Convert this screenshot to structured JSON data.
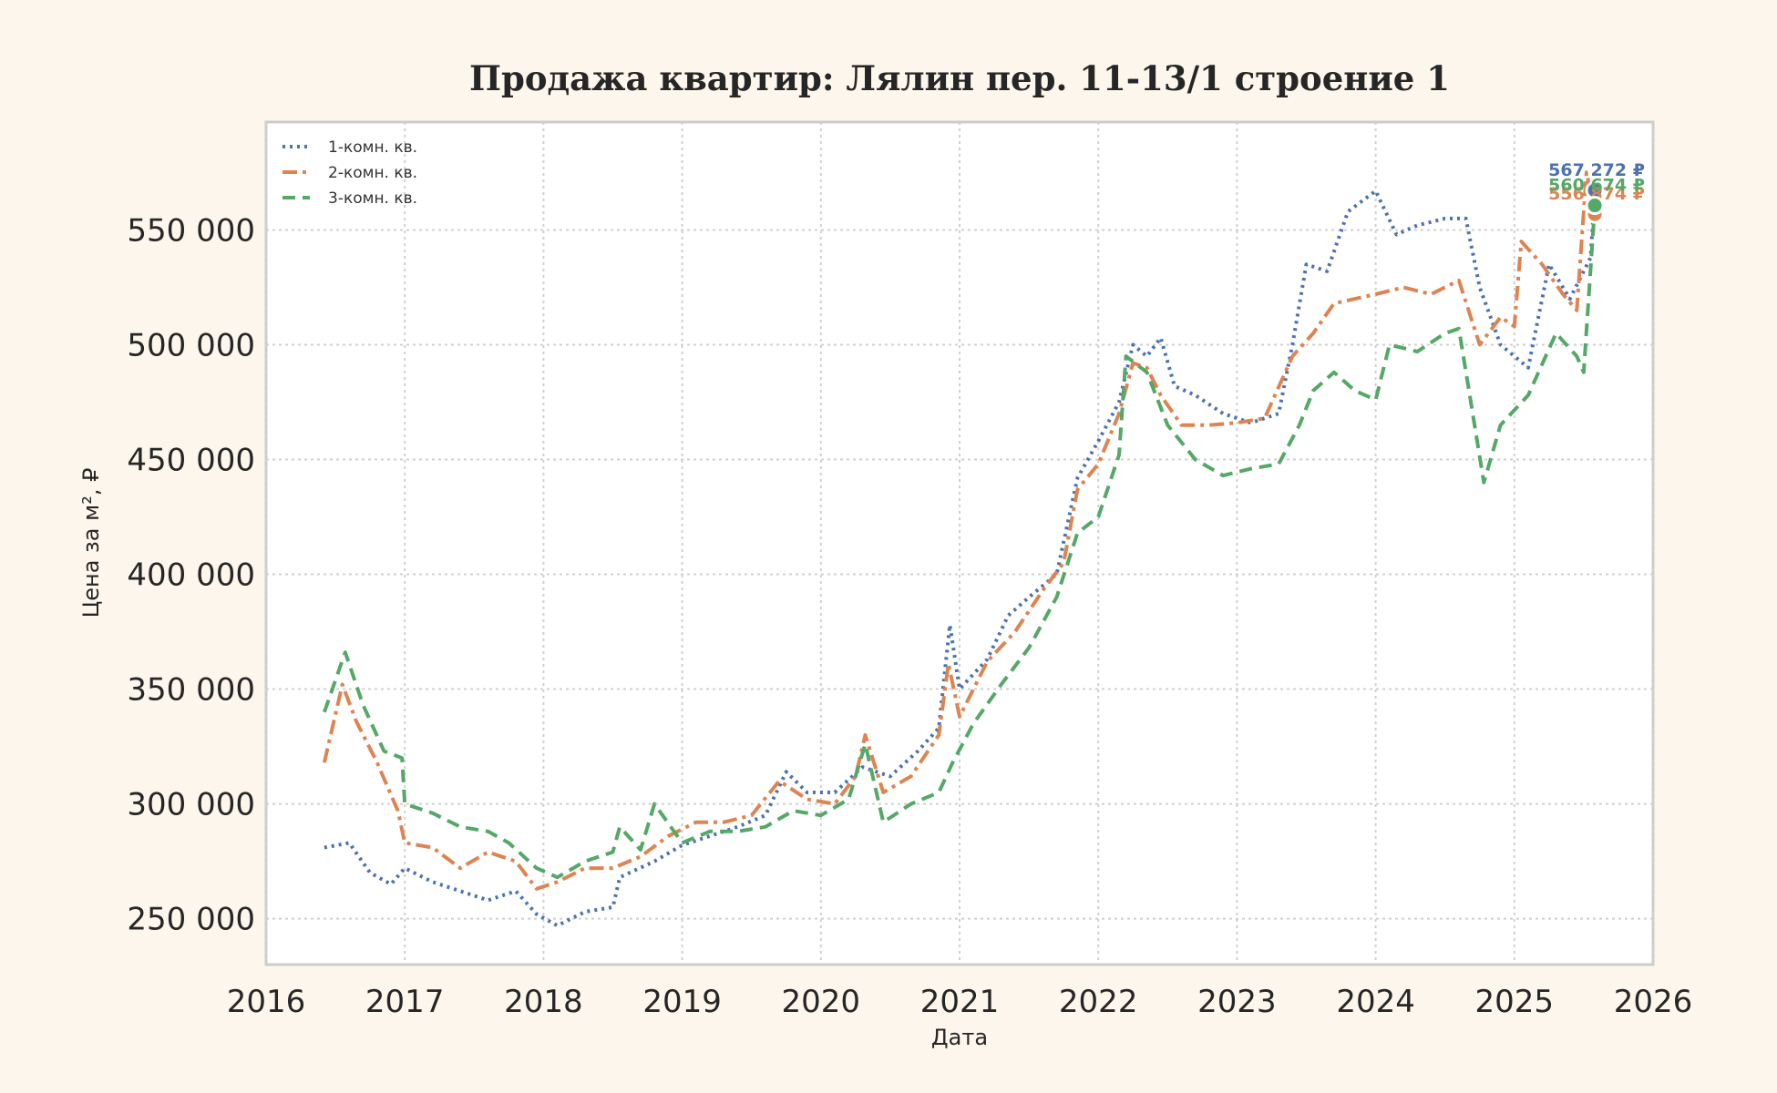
{
  "chart_data": {
    "type": "line",
    "title": "Продажа квартир: Лялин пер. 11-13/1 строение 1",
    "xlabel": "Дата",
    "ylabel": "Цена за м², ₽",
    "xlim": [
      2016,
      2026
    ],
    "ylim": [
      230000,
      597000
    ],
    "x_ticks": [
      "2016",
      "2017",
      "2018",
      "2019",
      "2020",
      "2021",
      "2022",
      "2023",
      "2024",
      "2025",
      "2026"
    ],
    "y_ticks": [
      {
        "value": 250000,
        "label": "250 000"
      },
      {
        "value": 300000,
        "label": "300 000"
      },
      {
        "value": 350000,
        "label": "350 000"
      },
      {
        "value": 400000,
        "label": "400 000"
      },
      {
        "value": 450000,
        "label": "450 000"
      },
      {
        "value": 500000,
        "label": "500 000"
      },
      {
        "value": 550000,
        "label": "550 000"
      }
    ],
    "grid": true,
    "legend_position": "top-left",
    "series": [
      {
        "name": "1-комн. кв.",
        "color": "#4c72b0",
        "dash": "dotted",
        "end_label": "567 272 ₽",
        "points": [
          [
            2016.42,
            281000
          ],
          [
            2016.6,
            283000
          ],
          [
            2016.75,
            270000
          ],
          [
            2016.9,
            265000
          ],
          [
            2017.0,
            272000
          ],
          [
            2017.2,
            266000
          ],
          [
            2017.4,
            262000
          ],
          [
            2017.6,
            258000
          ],
          [
            2017.8,
            262000
          ],
          [
            2017.95,
            252000
          ],
          [
            2018.1,
            247000
          ],
          [
            2018.3,
            253000
          ],
          [
            2018.5,
            255000
          ],
          [
            2018.55,
            268000
          ],
          [
            2018.8,
            275000
          ],
          [
            2019.0,
            282000
          ],
          [
            2019.2,
            286000
          ],
          [
            2019.4,
            290000
          ],
          [
            2019.6,
            295000
          ],
          [
            2019.75,
            314000
          ],
          [
            2019.9,
            305000
          ],
          [
            2020.1,
            305000
          ],
          [
            2020.3,
            316000
          ],
          [
            2020.5,
            312000
          ],
          [
            2020.7,
            323000
          ],
          [
            2020.85,
            333000
          ],
          [
            2020.93,
            378000
          ],
          [
            2021.0,
            350000
          ],
          [
            2021.2,
            363000
          ],
          [
            2021.35,
            382000
          ],
          [
            2021.5,
            390000
          ],
          [
            2021.7,
            400000
          ],
          [
            2021.85,
            442000
          ],
          [
            2022.0,
            458000
          ],
          [
            2022.15,
            475000
          ],
          [
            2022.25,
            500000
          ],
          [
            2022.35,
            495000
          ],
          [
            2022.45,
            503000
          ],
          [
            2022.55,
            482000
          ],
          [
            2022.7,
            478000
          ],
          [
            2022.9,
            470000
          ],
          [
            2023.1,
            466000
          ],
          [
            2023.3,
            470000
          ],
          [
            2023.4,
            500000
          ],
          [
            2023.5,
            535000
          ],
          [
            2023.65,
            532000
          ],
          [
            2023.8,
            558000
          ],
          [
            2024.0,
            567000
          ],
          [
            2024.15,
            548000
          ],
          [
            2024.3,
            552000
          ],
          [
            2024.5,
            555000
          ],
          [
            2024.65,
            555000
          ],
          [
            2024.75,
            525000
          ],
          [
            2024.9,
            500000
          ],
          [
            2025.1,
            490000
          ],
          [
            2025.25,
            535000
          ],
          [
            2025.4,
            520000
          ],
          [
            2025.55,
            538000
          ],
          [
            2025.58,
            567272
          ]
        ]
      },
      {
        "name": "2-комн. кв.",
        "color": "#dd8452",
        "dash": "dashdot",
        "end_label": "556 874 ₽",
        "points": [
          [
            2016.42,
            318000
          ],
          [
            2016.55,
            352000
          ],
          [
            2016.65,
            336000
          ],
          [
            2016.8,
            318000
          ],
          [
            2016.95,
            297000
          ],
          [
            2017.0,
            283000
          ],
          [
            2017.2,
            281000
          ],
          [
            2017.4,
            272000
          ],
          [
            2017.6,
            279000
          ],
          [
            2017.8,
            275000
          ],
          [
            2017.95,
            263000
          ],
          [
            2018.1,
            266000
          ],
          [
            2018.3,
            272000
          ],
          [
            2018.5,
            272000
          ],
          [
            2018.7,
            277000
          ],
          [
            2018.9,
            286000
          ],
          [
            2019.1,
            292000
          ],
          [
            2019.3,
            292000
          ],
          [
            2019.5,
            295000
          ],
          [
            2019.7,
            310000
          ],
          [
            2019.9,
            302000
          ],
          [
            2020.1,
            300000
          ],
          [
            2020.25,
            312000
          ],
          [
            2020.32,
            330000
          ],
          [
            2020.45,
            305000
          ],
          [
            2020.65,
            312000
          ],
          [
            2020.85,
            330000
          ],
          [
            2020.92,
            361000
          ],
          [
            2021.0,
            338000
          ],
          [
            2021.2,
            362000
          ],
          [
            2021.4,
            375000
          ],
          [
            2021.6,
            393000
          ],
          [
            2021.75,
            405000
          ],
          [
            2021.85,
            437000
          ],
          [
            2022.0,
            448000
          ],
          [
            2022.15,
            470000
          ],
          [
            2022.25,
            492000
          ],
          [
            2022.35,
            490000
          ],
          [
            2022.45,
            478000
          ],
          [
            2022.6,
            465000
          ],
          [
            2022.8,
            465000
          ],
          [
            2023.0,
            466000
          ],
          [
            2023.2,
            468000
          ],
          [
            2023.4,
            495000
          ],
          [
            2023.55,
            505000
          ],
          [
            2023.7,
            518000
          ],
          [
            2023.85,
            520000
          ],
          [
            2024.0,
            522000
          ],
          [
            2024.2,
            525000
          ],
          [
            2024.4,
            522000
          ],
          [
            2024.6,
            528000
          ],
          [
            2024.75,
            500000
          ],
          [
            2024.9,
            512000
          ],
          [
            2025.0,
            508000
          ],
          [
            2025.05,
            545000
          ],
          [
            2025.2,
            535000
          ],
          [
            2025.35,
            522000
          ],
          [
            2025.45,
            515000
          ],
          [
            2025.52,
            575000
          ],
          [
            2025.58,
            556874
          ]
        ]
      },
      {
        "name": "3-комн. кв.",
        "color": "#55a868",
        "dash": "dashed",
        "end_label": "560 674 ₽",
        "points": [
          [
            2016.42,
            340000
          ],
          [
            2016.57,
            366000
          ],
          [
            2016.7,
            343000
          ],
          [
            2016.85,
            323000
          ],
          [
            2016.98,
            320000
          ],
          [
            2017.0,
            300000
          ],
          [
            2017.2,
            296000
          ],
          [
            2017.4,
            290000
          ],
          [
            2017.6,
            288000
          ],
          [
            2017.75,
            283000
          ],
          [
            2017.95,
            272000
          ],
          [
            2018.1,
            268000
          ],
          [
            2018.3,
            275000
          ],
          [
            2018.5,
            279000
          ],
          [
            2018.55,
            290000
          ],
          [
            2018.7,
            280000
          ],
          [
            2018.8,
            300000
          ],
          [
            2019.0,
            283000
          ],
          [
            2019.2,
            288000
          ],
          [
            2019.4,
            288000
          ],
          [
            2019.6,
            290000
          ],
          [
            2019.8,
            297000
          ],
          [
            2020.0,
            295000
          ],
          [
            2020.2,
            302000
          ],
          [
            2020.32,
            326000
          ],
          [
            2020.45,
            292000
          ],
          [
            2020.65,
            300000
          ],
          [
            2020.85,
            305000
          ],
          [
            2020.95,
            318000
          ],
          [
            2021.1,
            335000
          ],
          [
            2021.3,
            352000
          ],
          [
            2021.5,
            368000
          ],
          [
            2021.7,
            390000
          ],
          [
            2021.85,
            418000
          ],
          [
            2022.0,
            425000
          ],
          [
            2022.15,
            452000
          ],
          [
            2022.2,
            495000
          ],
          [
            2022.35,
            488000
          ],
          [
            2022.5,
            465000
          ],
          [
            2022.7,
            450000
          ],
          [
            2022.9,
            443000
          ],
          [
            2023.1,
            446000
          ],
          [
            2023.3,
            448000
          ],
          [
            2023.45,
            465000
          ],
          [
            2023.55,
            480000
          ],
          [
            2023.7,
            488000
          ],
          [
            2023.85,
            480000
          ],
          [
            2024.0,
            476000
          ],
          [
            2024.1,
            500000
          ],
          [
            2024.3,
            497000
          ],
          [
            2024.5,
            505000
          ],
          [
            2024.6,
            507000
          ],
          [
            2024.7,
            470000
          ],
          [
            2024.78,
            440000
          ],
          [
            2024.9,
            465000
          ],
          [
            2025.1,
            478000
          ],
          [
            2025.3,
            505000
          ],
          [
            2025.45,
            495000
          ],
          [
            2025.5,
            488000
          ],
          [
            2025.58,
            560674
          ]
        ]
      }
    ]
  }
}
